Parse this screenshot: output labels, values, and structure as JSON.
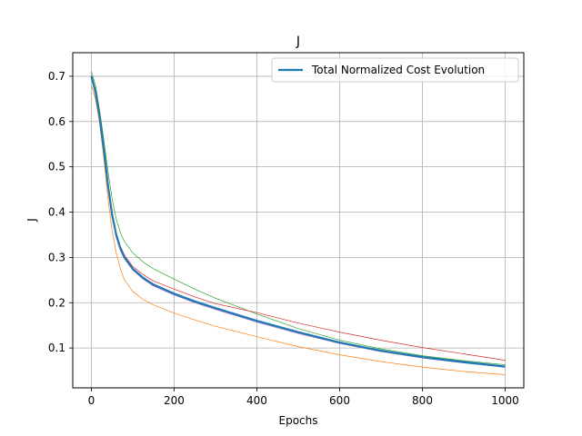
{
  "chart_data": {
    "type": "line",
    "title": "J",
    "xlabel": "Epochs",
    "ylabel": "J",
    "xlim": [
      -45,
      1045
    ],
    "ylim": [
      0.012,
      0.752
    ],
    "xticks": [
      0,
      200,
      400,
      600,
      800,
      1000
    ],
    "yticks": [
      0.1,
      0.2,
      0.3,
      0.4,
      0.5,
      0.6,
      0.7
    ],
    "xtick_labels": [
      "0",
      "200",
      "400",
      "600",
      "800",
      "1000"
    ],
    "ytick_labels": [
      "0.1",
      "0.2",
      "0.3",
      "0.4",
      "0.5",
      "0.6",
      "0.7"
    ],
    "grid": true,
    "legend": {
      "position": "top-right",
      "entries": [
        "Total Normalized Cost Evolution"
      ]
    },
    "x": [
      0,
      10,
      20,
      30,
      40,
      50,
      60,
      70,
      80,
      100,
      125,
      150,
      200,
      250,
      300,
      400,
      500,
      600,
      700,
      800,
      900,
      1000
    ],
    "series": [
      {
        "name": "Total Normalized Cost Evolution",
        "color": "#1f77b4",
        "emphasis": true,
        "values": [
          0.7,
          0.665,
          0.61,
          0.54,
          0.46,
          0.395,
          0.35,
          0.32,
          0.3,
          0.275,
          0.255,
          0.24,
          0.22,
          0.203,
          0.188,
          0.16,
          0.135,
          0.112,
          0.094,
          0.08,
          0.069,
          0.059
        ]
      },
      {
        "color": "#ff7f0e",
        "values": [
          0.68,
          0.65,
          0.595,
          0.52,
          0.43,
          0.36,
          0.31,
          0.275,
          0.25,
          0.225,
          0.207,
          0.195,
          0.177,
          0.162,
          0.148,
          0.125,
          0.103,
          0.085,
          0.07,
          0.058,
          0.048,
          0.041
        ]
      },
      {
        "color": "#2ca02c",
        "values": [
          0.71,
          0.68,
          0.625,
          0.56,
          0.49,
          0.43,
          0.385,
          0.355,
          0.335,
          0.31,
          0.29,
          0.275,
          0.252,
          0.23,
          0.21,
          0.175,
          0.143,
          0.117,
          0.098,
          0.083,
          0.072,
          0.063
        ]
      },
      {
        "color": "#d62728",
        "values": [
          0.7,
          0.67,
          0.612,
          0.545,
          0.465,
          0.4,
          0.355,
          0.325,
          0.305,
          0.28,
          0.262,
          0.248,
          0.23,
          0.213,
          0.198,
          0.178,
          0.155,
          0.135,
          0.117,
          0.101,
          0.087,
          0.073
        ]
      },
      {
        "color": "#9467bd",
        "values": [
          0.695,
          0.662,
          0.605,
          0.535,
          0.455,
          0.39,
          0.345,
          0.316,
          0.297,
          0.272,
          0.252,
          0.237,
          0.217,
          0.2,
          0.185,
          0.157,
          0.132,
          0.11,
          0.092,
          0.078,
          0.067,
          0.058
        ]
      }
    ]
  }
}
